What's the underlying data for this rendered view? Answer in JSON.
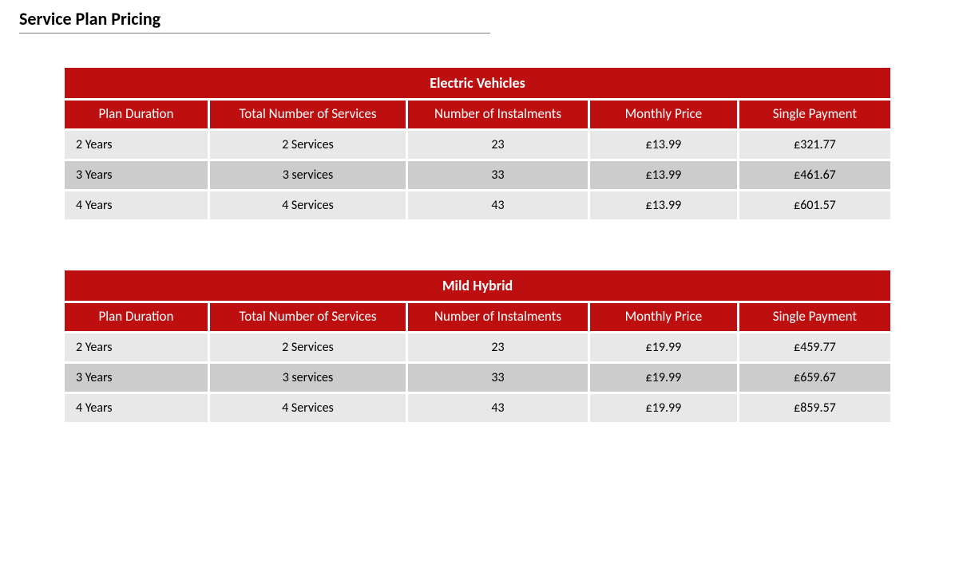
{
  "title": "Service Plan Pricing",
  "theme": {
    "header_bg": "#bd0f0f",
    "header_fg": "#ffffff",
    "row_light": "#e8e8e8",
    "row_dark": "#cccccc",
    "page_bg": "#ffffff",
    "title_color": "#000000",
    "underline_color": "#808080",
    "title_fontsize": 22,
    "caption_fontsize": 18,
    "header_fontsize": 17,
    "cell_fontsize": 16
  },
  "columns": [
    "Plan Duration",
    "Total Number of Services",
    "Number of Instalments",
    "Monthly Price",
    "Single Payment"
  ],
  "tables": [
    {
      "caption": "Electric Vehicles",
      "rows": [
        {
          "shade": "light",
          "cells": [
            "2 Years",
            "2 Services",
            "23",
            "£13.99",
            "£321.77"
          ]
        },
        {
          "shade": "dark",
          "cells": [
            "3 Years",
            "3 services",
            "33",
            "£13.99",
            "£461.67"
          ]
        },
        {
          "shade": "light",
          "cells": [
            "4 Years",
            "4 Services",
            "43",
            "£13.99",
            "£601.57"
          ]
        }
      ]
    },
    {
      "caption": "Mild Hybrid",
      "rows": [
        {
          "shade": "light",
          "cells": [
            "2 Years",
            "2 Services",
            "23",
            "£19.99",
            "£459.77"
          ]
        },
        {
          "shade": "dark",
          "cells": [
            "3 Years",
            "3 services",
            "33",
            "£19.99",
            "£659.67"
          ]
        },
        {
          "shade": "light",
          "cells": [
            "4 Years",
            "4 Services",
            "43",
            "£19.99",
            "£859.57"
          ]
        }
      ]
    }
  ]
}
